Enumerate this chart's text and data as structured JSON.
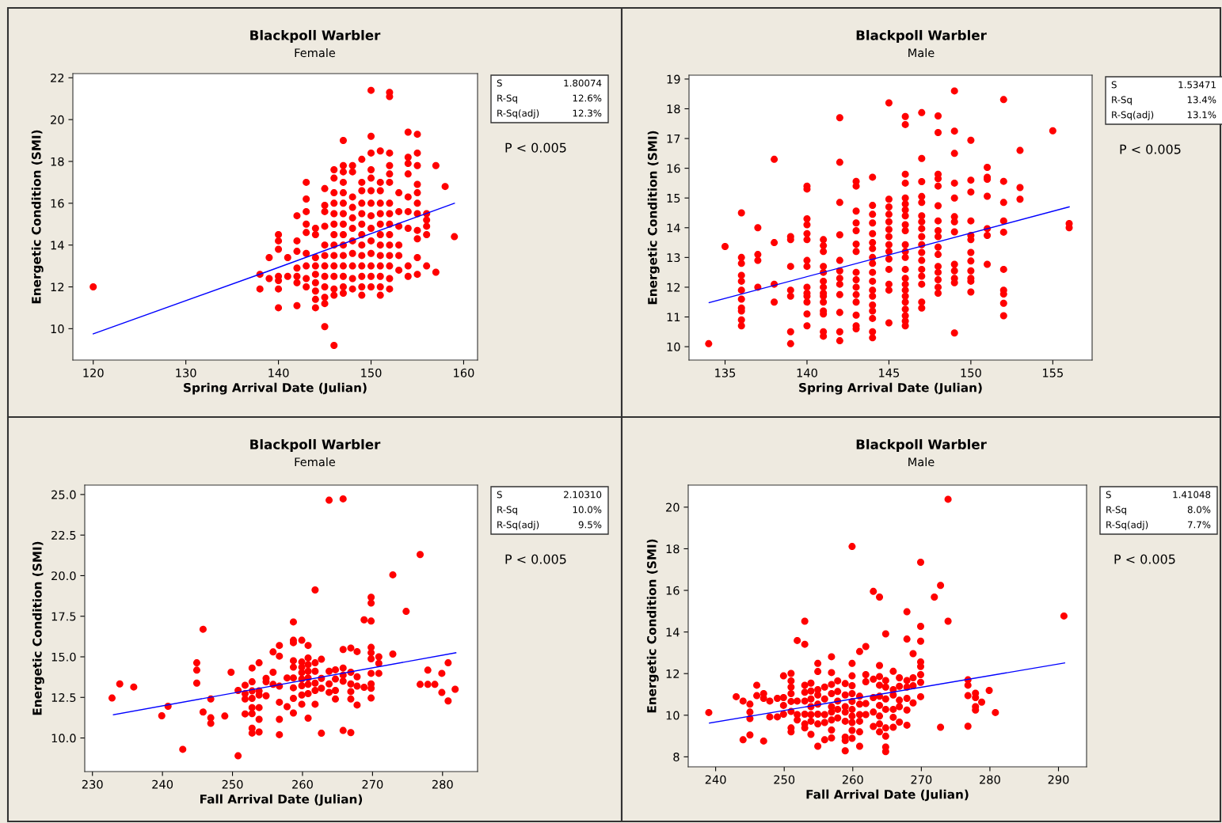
{
  "chart_data": [
    {
      "type": "scatter",
      "title": "Blackpoll Warbler",
      "subtitle": "Female",
      "xlabel": "Spring Arrival Date (Julian)",
      "ylabel": "Energetic Condition (SMI)",
      "xlim": [
        117.8,
        161.5
      ],
      "ylim": [
        8.5,
        22.2
      ],
      "xticks": [
        120,
        130,
        140,
        150,
        160
      ],
      "yticks": [
        10,
        12,
        14,
        16,
        18,
        20,
        22
      ],
      "annotations": [
        "S",
        "1.80074",
        "R-Sq",
        "12.6%",
        "R-Sq(adj)",
        "12.3%",
        "P < 0.005"
      ],
      "series": [
        {
          "type": "scatter",
          "color": "#ff0000",
          "marker": "circle",
          "x": [
            120,
            138,
            138,
            139,
            139,
            140,
            140,
            140,
            140,
            140,
            140,
            140,
            141,
            141,
            142,
            142,
            142,
            142,
            142,
            142,
            142,
            143,
            143,
            143,
            143,
            143,
            143,
            143,
            143,
            143,
            144,
            144,
            144,
            144,
            144,
            144,
            144,
            144,
            144,
            145,
            145,
            145,
            145,
            145,
            145,
            145,
            145,
            145,
            145,
            145,
            145,
            146,
            146,
            146,
            146,
            146,
            146,
            146,
            146,
            146,
            146,
            146,
            146,
            146,
            146,
            147,
            147,
            147,
            147,
            147,
            147,
            147,
            147,
            147,
            147,
            147,
            147,
            147,
            147,
            147,
            148,
            148,
            148,
            148,
            148,
            148,
            148,
            148,
            148,
            148,
            148,
            149,
            149,
            149,
            149,
            149,
            149,
            149,
            149,
            149,
            149,
            149,
            149,
            149,
            150,
            150,
            150,
            150,
            150,
            150,
            150,
            150,
            150,
            150,
            150,
            150,
            150,
            150,
            151,
            151,
            151,
            151,
            151,
            151,
            151,
            151,
            151,
            151,
            151,
            151,
            151,
            152,
            152,
            152,
            152,
            152,
            152,
            152,
            152,
            152,
            152,
            152,
            152,
            152,
            152,
            152,
            153,
            153,
            153,
            153,
            153,
            153,
            154,
            154,
            154,
            154,
            154,
            154,
            154,
            154,
            154,
            155,
            155,
            155,
            155,
            155,
            155,
            155,
            155,
            155,
            155,
            155,
            156,
            156,
            156,
            156,
            156,
            157,
            157,
            158,
            159
          ],
          "values": [
            12.0,
            12.6,
            11.9,
            13.4,
            12.4,
            14.5,
            14.2,
            13.8,
            12.5,
            12.3,
            11.9,
            11.0,
            13.4,
            12.5,
            15.4,
            14.2,
            13.7,
            12.9,
            12.5,
            12.2,
            11.1,
            17.0,
            16.2,
            15.6,
            15.0,
            14.6,
            13.6,
            13.0,
            12.4,
            12.0,
            14.8,
            14.5,
            13.4,
            13.0,
            12.6,
            12.2,
            11.8,
            11.4,
            11.0,
            16.7,
            15.9,
            15.6,
            14.9,
            14.0,
            13.5,
            13.0,
            12.5,
            12.0,
            11.5,
            11.2,
            10.1,
            17.6,
            17.2,
            16.5,
            16.0,
            15.5,
            15.0,
            14.5,
            14.0,
            13.5,
            13.0,
            12.5,
            11.9,
            11.6,
            9.2,
            19.0,
            17.8,
            17.5,
            17.0,
            16.5,
            16.0,
            15.5,
            15.0,
            14.5,
            14.0,
            13.5,
            13.0,
            12.5,
            12.0,
            11.7,
            17.8,
            17.5,
            16.3,
            15.8,
            15.3,
            14.8,
            14.2,
            13.6,
            13.0,
            12.4,
            11.9,
            18.1,
            17.0,
            16.6,
            16.0,
            15.5,
            15.0,
            14.5,
            14.0,
            13.5,
            13.0,
            12.5,
            12.0,
            11.6,
            21.4,
            19.2,
            18.4,
            17.6,
            17.2,
            16.6,
            16.0,
            15.4,
            14.8,
            14.2,
            13.6,
            13.0,
            12.5,
            12.0,
            18.5,
            17.0,
            16.6,
            16.0,
            15.5,
            15.0,
            14.5,
            14.0,
            13.5,
            13.0,
            12.5,
            12.0,
            11.6,
            21.3,
            21.1,
            18.4,
            17.8,
            17.4,
            17.0,
            16.0,
            15.5,
            15.0,
            14.5,
            14.0,
            13.5,
            13.0,
            12.4,
            11.9,
            16.5,
            15.6,
            14.9,
            14.0,
            13.5,
            12.8,
            19.4,
            18.2,
            17.9,
            17.4,
            16.3,
            15.6,
            14.8,
            13.0,
            12.5,
            19.3,
            18.4,
            17.8,
            16.9,
            16.5,
            16.0,
            15.5,
            14.7,
            14.3,
            13.4,
            12.6,
            15.5,
            15.2,
            14.9,
            14.5,
            13.0,
            17.8,
            12.7,
            16.8,
            14.4
          ]
        },
        {
          "type": "line",
          "color": "#0000ff",
          "marker": "none",
          "x": [
            120,
            138.7,
            159
          ],
          "values": [
            9.75,
            12.72,
            16.0
          ]
        }
      ]
    },
    {
      "type": "scatter",
      "title": "Blackpoll Warbler",
      "subtitle": "Male",
      "xlabel": "Spring Arrival Date (Julian)",
      "ylabel": "Energetic Condition (SMI)",
      "xlim": [
        132.8,
        157.4
      ],
      "ylim": [
        9.55,
        19.13
      ],
      "xticks": [
        135,
        140,
        145,
        150,
        155
      ],
      "yticks": [
        10,
        11,
        12,
        13,
        14,
        15,
        16,
        17,
        18,
        19
      ],
      "annotations": [
        "S",
        "1.53471",
        "R-Sq",
        "13.4%",
        "R-Sq(adj)",
        "13.1%",
        "P < 0.005"
      ],
      "series": [
        {
          "type": "scatter",
          "color": "#ff0000",
          "marker": "circle",
          "x": [
            134,
            135,
            136,
            136,
            136,
            136,
            136,
            136,
            136,
            136,
            136,
            136,
            136,
            137,
            137,
            137,
            137,
            138,
            138,
            138,
            138,
            139,
            139,
            139,
            139,
            139,
            139,
            139,
            140,
            140,
            140,
            140,
            140,
            140,
            140,
            140,
            140,
            140,
            140,
            140,
            140,
            140,
            141,
            141,
            141,
            141,
            141,
            141,
            141,
            141,
            141,
            141,
            141,
            141,
            141,
            141,
            142,
            142,
            142,
            142,
            142,
            142,
            142,
            142,
            142,
            142,
            142,
            142,
            143,
            143,
            143,
            143,
            143,
            143,
            143,
            143,
            143,
            143,
            143,
            143,
            143,
            143,
            143,
            144,
            144,
            144,
            144,
            144,
            144,
            144,
            144,
            144,
            144,
            144,
            144,
            144,
            144,
            144,
            144,
            144,
            144,
            145,
            145,
            145,
            145,
            145,
            145,
            145,
            145,
            145,
            145,
            145,
            145,
            145,
            145,
            146,
            146,
            146,
            146,
            146,
            146,
            146,
            146,
            146,
            146,
            146,
            146,
            146,
            146,
            146,
            146,
            146,
            146,
            146,
            146,
            146,
            146,
            146,
            147,
            147,
            147,
            147,
            147,
            147,
            147,
            147,
            147,
            147,
            147,
            147,
            147,
            147,
            147,
            147,
            147,
            148,
            148,
            148,
            148,
            148,
            148,
            148,
            148,
            148,
            148,
            148,
            148,
            148,
            148,
            148,
            148,
            149,
            149,
            149,
            149,
            149,
            149,
            149,
            149,
            149,
            149,
            149,
            149,
            149,
            150,
            150,
            150,
            150,
            150,
            150,
            150,
            150,
            150,
            150,
            150,
            150,
            151,
            151,
            151,
            151,
            151,
            151,
            151,
            152,
            152,
            152,
            152,
            152,
            152,
            152,
            152,
            152,
            152,
            153,
            153,
            153,
            155,
            156,
            156
          ],
          "values": [
            10.1,
            13.37,
            14.5,
            13.0,
            12.8,
            12.4,
            12.2,
            11.9,
            11.6,
            11.3,
            11.2,
            10.9,
            10.7,
            14.0,
            13.1,
            12.9,
            12.0,
            16.3,
            13.5,
            12.1,
            11.5,
            13.7,
            13.6,
            12.7,
            11.9,
            11.7,
            10.5,
            10.1,
            15.4,
            15.3,
            14.3,
            14.1,
            13.8,
            13.6,
            12.9,
            12.7,
            12.0,
            11.8,
            11.7,
            11.5,
            11.1,
            10.7,
            13.6,
            13.4,
            13.2,
            12.7,
            12.5,
            12.2,
            12.0,
            11.8,
            11.7,
            11.5,
            11.2,
            11.1,
            10.5,
            10.35,
            17.7,
            16.2,
            14.85,
            13.76,
            12.9,
            12.55,
            12.3,
            12.1,
            11.75,
            11.15,
            10.5,
            10.2,
            15.56,
            15.4,
            14.56,
            14.16,
            13.9,
            13.45,
            13.2,
            12.5,
            12.25,
            12.0,
            11.75,
            11.5,
            11.06,
            10.7,
            10.6,
            15.7,
            14.75,
            14.45,
            14.16,
            13.8,
            13.5,
            13.3,
            13.0,
            12.8,
            12.5,
            12.2,
            11.9,
            11.7,
            11.4,
            11.2,
            10.95,
            10.5,
            10.3,
            18.2,
            14.96,
            14.7,
            14.45,
            14.2,
            13.94,
            13.7,
            13.43,
            13.2,
            12.95,
            12.6,
            12.1,
            11.9,
            10.8,
            17.74,
            17.47,
            15.8,
            15.5,
            15.0,
            14.8,
            14.6,
            14.4,
            14.1,
            13.9,
            13.43,
            13.2,
            13.0,
            12.6,
            12.3,
            12.1,
            11.9,
            11.7,
            11.5,
            11.26,
            11.04,
            10.86,
            10.7,
            17.87,
            16.33,
            15.55,
            15.05,
            14.85,
            14.4,
            14.2,
            13.97,
            13.7,
            13.43,
            13.17,
            12.9,
            12.6,
            12.37,
            12.1,
            11.5,
            11.3,
            17.76,
            17.2,
            15.8,
            15.65,
            15.4,
            14.74,
            14.23,
            13.9,
            13.7,
            13.35,
            13.1,
            12.7,
            12.5,
            12.25,
            12.0,
            11.8,
            18.6,
            17.25,
            16.5,
            15.5,
            15.0,
            14.37,
            14.2,
            13.86,
            12.77,
            12.55,
            12.3,
            12.15,
            10.46,
            16.94,
            15.6,
            15.2,
            14.23,
            13.74,
            13.6,
            13.17,
            12.88,
            12.55,
            12.3,
            12.2,
            11.84,
            16.03,
            15.7,
            15.63,
            15.06,
            13.97,
            13.74,
            12.77,
            18.31,
            15.56,
            14.85,
            14.23,
            13.85,
            12.6,
            11.9,
            11.77,
            11.46,
            11.04,
            16.6,
            15.35,
            14.96,
            17.26,
            14.14,
            14.0
          ]
        },
        {
          "type": "line",
          "color": "#0000ff",
          "marker": "none",
          "x": [
            134.03,
            156
          ],
          "values": [
            11.48,
            14.7
          ]
        }
      ]
    },
    {
      "type": "scatter",
      "title": "Blackpoll Warbler",
      "subtitle": "Female",
      "xlabel": "Fall Arrival Date (Julian)",
      "ylabel": "Energetic Condition (SMI)",
      "xlim": [
        228.9,
        285.0
      ],
      "ylim": [
        7.93,
        25.58
      ],
      "xticks": [
        230,
        240,
        250,
        260,
        270,
        280
      ],
      "yticks": [
        {
          "value": 10,
          "label": "10.0"
        },
        {
          "value": 12.5,
          "label": "12.5"
        },
        {
          "value": 15,
          "label": "15.0"
        },
        {
          "value": 17.5,
          "label": "17.5"
        },
        {
          "value": 20,
          "label": "20.0"
        },
        {
          "value": 22.5,
          "label": "22.5"
        },
        {
          "value": 25,
          "label": "25.0"
        }
      ],
      "annotations": [
        "S",
        "2.10310",
        "R-Sq",
        "10.0%",
        "R-Sq(adj)",
        "9.5%",
        "P < 0.005"
      ],
      "series": [
        {
          "type": "scatter",
          "color": "#ff0000",
          "marker": "circle",
          "x": [
            232.8,
            233.9,
            235.9,
            239.9,
            240.8,
            242.9,
            244.9,
            244.9,
            244.9,
            245.8,
            245.8,
            246.9,
            246.9,
            246.9,
            248.9,
            249.8,
            250.8,
            250.8,
            251.8,
            251.8,
            251.8,
            251.8,
            252.8,
            252.8,
            252.8,
            252.8,
            252.8,
            252.8,
            252.8,
            252.8,
            253.8,
            253.8,
            253.8,
            253.8,
            253.8,
            253.8,
            254.8,
            254.8,
            254.8,
            255.8,
            255.8,
            255.8,
            256.7,
            256.7,
            256.7,
            256.7,
            256.7,
            256.7,
            257.8,
            257.8,
            258.7,
            258.7,
            258.7,
            258.7,
            258.7,
            258.7,
            258.7,
            258.7,
            258.7,
            259.9,
            259.9,
            259.9,
            259.9,
            259.9,
            259.9,
            259.9,
            259.9,
            260.8,
            260.8,
            260.8,
            260.8,
            260.8,
            260.8,
            260.8,
            260.8,
            261.8,
            261.8,
            261.8,
            261.8,
            261.8,
            261.8,
            262.7,
            262.7,
            262.7,
            262.7,
            263.8,
            263.8,
            263.8,
            263.8,
            264.7,
            264.7,
            264.7,
            264.7,
            265.8,
            265.8,
            265.8,
            265.8,
            265.8,
            265.8,
            266.9,
            266.9,
            266.9,
            266.9,
            266.9,
            266.9,
            267.8,
            267.8,
            267.8,
            267.8,
            268.8,
            268.8,
            269.8,
            269.8,
            269.8,
            269.8,
            269.8,
            269.8,
            269.8,
            269.8,
            269.8,
            269.8,
            270.9,
            270.9,
            270.9,
            272.9,
            272.9,
            274.8,
            276.8,
            276.8,
            277.9,
            277.9,
            278.9,
            279.9,
            279.9,
            280.8,
            280.8,
            281.8
          ],
          "values": [
            12.46,
            13.33,
            13.14,
            11.37,
            11.95,
            9.3,
            14.63,
            14.18,
            13.38,
            16.7,
            11.6,
            12.4,
            11.24,
            10.9,
            11.35,
            14.05,
            8.9,
            12.93,
            13.25,
            12.73,
            12.4,
            11.48,
            14.31,
            13.46,
            12.9,
            12.44,
            11.87,
            11.5,
            10.6,
            10.3,
            14.63,
            12.9,
            12.65,
            11.87,
            11.15,
            10.37,
            13.67,
            13.46,
            12.6,
            15.3,
            14.05,
            13.3,
            15.7,
            15.04,
            13.19,
            12.2,
            11.15,
            10.2,
            13.7,
            11.93,
            17.15,
            16.02,
            15.87,
            14.76,
            14.36,
            13.7,
            13.09,
            12.44,
            11.54,
            16.02,
            14.68,
            14.36,
            14.03,
            13.63,
            13.22,
            12.65,
            12.08,
            15.7,
            14.93,
            14.52,
            14.11,
            13.7,
            13.3,
            12.73,
            11.22,
            19.12,
            14.63,
            14.11,
            13.38,
            12.93,
            12.08,
            14.85,
            13.67,
            13.06,
            10.29,
            14.11,
            13.33,
            12.81,
            24.65,
            14.2,
            13.63,
            12.93,
            12.4,
            24.73,
            15.45,
            14.31,
            13.87,
            13.5,
            10.46,
            15.54,
            14.05,
            13.33,
            12.86,
            12.4,
            10.33,
            15.32,
            13.77,
            13.19,
            12.03,
            17.28,
            13.12,
            18.67,
            18.31,
            17.2,
            15.58,
            15.25,
            14.88,
            13.98,
            13.33,
            13.06,
            12.46,
            15.0,
            14.6,
            13.98,
            20.05,
            15.17,
            17.8,
            21.3,
            13.3,
            14.18,
            13.3,
            13.3,
            13.98,
            12.8,
            14.63,
            12.28,
            13.0
          ]
        },
        {
          "type": "line",
          "color": "#0000ff",
          "marker": "none",
          "x": [
            233.0,
            281.9
          ],
          "values": [
            11.43,
            15.25
          ]
        }
      ]
    },
    {
      "type": "scatter",
      "title": "Blackpoll Warbler",
      "subtitle": "Male",
      "xlabel": "Fall Arrival Date (Julian)",
      "ylabel": "Energetic Condition (SMI)",
      "xlim": [
        236.0,
        294.1
      ],
      "ylim": [
        7.52,
        21.06
      ],
      "xticks": [
        240,
        250,
        260,
        270,
        280,
        290
      ],
      "yticks": [
        8,
        10,
        12,
        14,
        16,
        18,
        20
      ],
      "annotations": [
        "S",
        "1.41048",
        "R-Sq",
        "8.0%",
        "R-Sq(adj)",
        "7.7%",
        "P < 0.005"
      ],
      "series": [
        {
          "type": "scatter",
          "color": "#ff0000",
          "marker": "circle",
          "x": [
            239.0,
            243.0,
            244.0,
            244.0,
            245.0,
            245.0,
            245.0,
            245.0,
            246.0,
            246.0,
            247.0,
            247.0,
            247.0,
            247.9,
            247.9,
            249.0,
            249.0,
            249.9,
            249.9,
            249.9,
            249.9,
            251.0,
            251.0,
            251.0,
            251.0,
            251.0,
            251.0,
            251.0,
            251.0,
            251.9,
            251.9,
            251.9,
            251.9,
            253.0,
            253.0,
            253.0,
            253.0,
            253.0,
            253.0,
            253.0,
            253.0,
            253.9,
            253.9,
            253.9,
            253.9,
            253.9,
            253.9,
            253.9,
            254.9,
            254.9,
            254.9,
            254.9,
            254.9,
            254.9,
            254.9,
            254.9,
            255.9,
            255.9,
            255.9,
            255.9,
            255.9,
            256.9,
            256.9,
            256.9,
            256.9,
            256.9,
            256.9,
            256.9,
            256.9,
            256.9,
            257.8,
            257.8,
            257.8,
            257.8,
            257.8,
            258.9,
            258.9,
            258.9,
            258.9,
            258.9,
            258.9,
            258.9,
            258.9,
            259.9,
            259.9,
            259.9,
            259.9,
            259.9,
            259.9,
            259.9,
            259.9,
            259.9,
            259.9,
            259.9,
            261.0,
            261.0,
            261.0,
            261.0,
            261.0,
            261.0,
            261.0,
            261.9,
            261.9,
            261.9,
            261.9,
            261.9,
            263.0,
            263.0,
            263.0,
            263.0,
            263.0,
            263.9,
            263.9,
            263.9,
            263.9,
            263.9,
            263.9,
            263.9,
            263.9,
            263.9,
            264.8,
            264.8,
            264.8,
            264.8,
            264.8,
            264.8,
            264.8,
            264.8,
            264.8,
            265.9,
            265.9,
            265.9,
            265.9,
            265.9,
            265.9,
            266.8,
            266.8,
            266.8,
            266.8,
            266.8,
            267.9,
            267.9,
            267.9,
            267.9,
            267.9,
            267.9,
            267.9,
            268.8,
            268.8,
            268.8,
            268.8,
            269.9,
            269.9,
            269.9,
            269.9,
            269.9,
            269.9,
            269.9,
            269.9,
            271.9,
            272.8,
            272.8,
            273.9,
            273.9,
            276.8,
            276.8,
            276.8,
            276.8,
            277.9,
            277.9,
            277.9,
            277.9,
            278.8,
            279.9,
            280.8,
            290.8
          ],
          "values": [
            10.13,
            10.89,
            10.68,
            8.82,
            10.53,
            10.15,
            9.84,
            9.05,
            11.44,
            10.94,
            11.04,
            10.81,
            8.76,
            10.68,
            9.92,
            10.81,
            9.92,
            11.89,
            10.85,
            10.47,
            10.05,
            12.01,
            11.65,
            11.35,
            11.04,
            10.66,
            10.18,
            9.39,
            9.2,
            13.59,
            10.68,
            10.03,
            9.77,
            14.52,
            13.41,
            11.44,
            11.1,
            10.68,
            10.05,
            9.58,
            9.39,
            11.54,
            11.16,
            10.78,
            10.41,
            10.03,
            9.71,
            9.08,
            12.49,
            12.1,
            11.23,
            10.97,
            10.53,
            10.05,
            9.58,
            8.51,
            11.35,
            10.78,
            10.03,
            9.65,
            8.82,
            12.81,
            12.05,
            11.48,
            11.04,
            10.41,
            10.15,
            9.77,
            9.29,
            8.91,
            11.65,
            11.14,
            10.68,
            10.28,
            9.87,
            11.52,
            10.97,
            10.41,
            10.15,
            9.71,
            8.95,
            8.78,
            8.29,
            18.11,
            12.49,
            11.89,
            11.42,
            11.04,
            10.66,
            10.28,
            9.96,
            9.65,
            9.27,
            8.89,
            13.06,
            10.91,
            10.53,
            10.03,
            9.71,
            9.2,
            8.51,
            13.3,
            11.95,
            11.61,
            10.56,
            10.03,
            15.95,
            11.73,
            10.85,
            10.15,
            9.46,
            15.68,
            12.39,
            11.86,
            11.44,
            10.91,
            10.47,
            9.96,
            9.58,
            9.2,
            13.91,
            11.67,
            11.35,
            10.78,
            10.28,
            9.39,
            8.99,
            8.47,
            8.25,
            12.11,
            11.23,
            10.97,
            10.28,
            9.9,
            9.42,
            11.8,
            11.39,
            10.72,
            10.41,
            9.67,
            14.97,
            13.66,
            11.67,
            11.35,
            10.81,
            10.25,
            9.52,
            12.96,
            11.8,
            11.42,
            10.59,
            17.35,
            14.27,
            13.56,
            12.56,
            12.34,
            11.95,
            11.58,
            10.89,
            15.68,
            16.24,
            9.42,
            20.38,
            14.52,
            11.7,
            11.44,
            10.94,
            9.47,
            11.06,
            10.85,
            10.41,
            10.25,
            10.63,
            11.19,
            10.13,
            14.77
          ]
        },
        {
          "type": "line",
          "color": "#0000ff",
          "marker": "none",
          "x": [
            239.1,
            290.9
          ],
          "values": [
            9.62,
            12.51
          ]
        }
      ]
    }
  ]
}
